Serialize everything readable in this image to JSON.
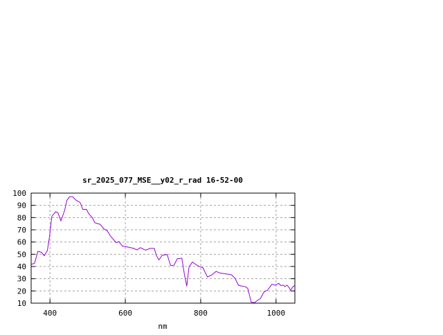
{
  "chart_data": {
    "type": "line",
    "title": "sr_2025_077_MSE__y02_r_rad 16-52-00",
    "xlabel": "nm",
    "ylabel": "",
    "xlim": [
      350,
      1050
    ],
    "ylim": [
      10,
      100
    ],
    "xticks": [
      400,
      600,
      800,
      1000
    ],
    "yticks": [
      10,
      20,
      30,
      40,
      50,
      60,
      70,
      80,
      90,
      100
    ],
    "grid": true,
    "legend": "none",
    "line_color": "#9400d3",
    "series": [
      {
        "x": [
          350,
          359,
          368,
          377,
          385,
          393,
          399,
          405,
          415,
          421,
          429,
          439,
          445,
          452,
          460,
          469,
          480,
          487,
          497,
          503,
          512,
          519,
          533,
          543,
          552,
          561,
          576,
          583,
          592,
          610,
          622,
          631,
          640,
          654,
          665,
          677,
          682,
          689,
          698,
          711,
          720,
          729,
          738,
          750,
          757,
          763,
          769,
          778,
          793,
          806,
          818,
          830,
          841,
          851,
          866,
          882,
          891,
          900,
          909,
          919,
          925,
          934,
          943,
          952,
          958,
          968,
          977,
          989,
          998,
          1007,
          1013,
          1019,
          1024,
          1029,
          1034,
          1039,
          1044,
          1049
        ],
        "y": [
          41.7,
          42.6,
          52.4,
          51.6,
          48.8,
          53,
          65,
          81,
          84.8,
          83.9,
          77.3,
          85.9,
          94.2,
          97,
          97,
          94.2,
          92.3,
          86.7,
          86.7,
          83,
          80.1,
          75.8,
          74.5,
          70.8,
          69.2,
          64.7,
          59.5,
          60.4,
          56.7,
          55.7,
          54.8,
          53.5,
          55.4,
          53.3,
          54.8,
          54.8,
          49.2,
          45.4,
          49.2,
          49.8,
          40.8,
          41,
          46.4,
          46.8,
          33.2,
          23.9,
          39.8,
          43.6,
          40.4,
          38.9,
          31.4,
          33.2,
          36,
          34.6,
          34,
          33.2,
          30.4,
          24.8,
          23.9,
          23.4,
          22,
          10.8,
          10.4,
          12.6,
          13.5,
          19.2,
          20.5,
          25.4,
          24.8,
          26.2,
          24.4,
          24.8,
          23.5,
          24.8,
          23,
          20.5,
          23,
          24.4
        ]
      }
    ]
  }
}
